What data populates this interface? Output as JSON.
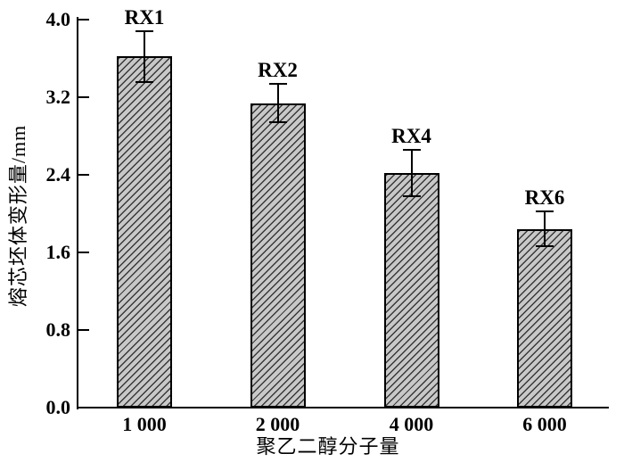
{
  "chart_data": {
    "type": "bar",
    "title": "",
    "xlabel": "聚乙二醇分子量",
    "ylabel": "熔芯坯体变形量/mm",
    "categories": [
      "1 000",
      "2 000",
      "4 000",
      "6 000"
    ],
    "series": [
      {
        "values": [
          3.62,
          3.14,
          2.42,
          1.84
        ],
        "errors": [
          0.26,
          0.2,
          0.24,
          0.18
        ],
        "point_labels": [
          "RX1",
          "RX2",
          "RX4",
          "RX6"
        ]
      }
    ],
    "ylim": [
      0,
      4.0
    ],
    "yticks": [
      "0.0",
      "0.8",
      "1.6",
      "2.4",
      "3.2",
      "4.0"
    ],
    "grid": false,
    "legend": false,
    "colors": {
      "bar_fill": "#c8c8c8",
      "bar_hatch": "#383838",
      "bar_border": "#000000",
      "axis": "#000000",
      "text": "#000000",
      "background": "#ffffff"
    },
    "hatch_style": "forward-diagonal"
  }
}
